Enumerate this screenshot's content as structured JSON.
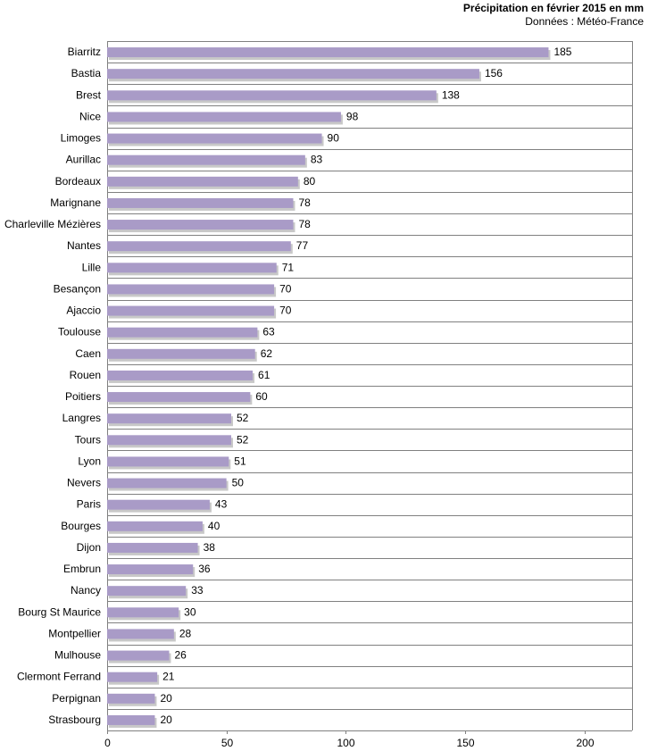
{
  "header": {
    "title": "Précipitation en février 2015 en mm",
    "source": "Données : Météo-France"
  },
  "chart_data": {
    "type": "bar",
    "orientation": "horizontal",
    "title": "Précipitation en février 2015 en mm",
    "subtitle": "Données : Météo-France",
    "categories": [
      "Biarritz",
      "Bastia",
      "Brest",
      "Nice",
      "Limoges",
      "Aurillac",
      "Bordeaux",
      "Marignane",
      "Charleville Mézières",
      "Nantes",
      "Lille",
      "Besançon",
      "Ajaccio",
      "Toulouse",
      "Caen",
      "Rouen",
      "Poitiers",
      "Langres",
      "Tours",
      "Lyon",
      "Nevers",
      "Paris",
      "Bourges",
      "Dijon",
      "Embrun",
      "Nancy",
      "Bourg St Maurice",
      "Montpellier",
      "Mulhouse",
      "Clermont Ferrand",
      "Perpignan",
      "Strasbourg"
    ],
    "values": [
      185,
      156,
      138,
      98,
      90,
      83,
      80,
      78,
      78,
      77,
      71,
      70,
      70,
      63,
      62,
      61,
      60,
      52,
      52,
      51,
      50,
      43,
      40,
      38,
      36,
      33,
      30,
      28,
      26,
      21,
      20,
      20
    ],
    "xlim": [
      0,
      220
    ],
    "xticks": [
      0,
      50,
      100,
      150,
      200
    ],
    "grid": true,
    "data_labels": true,
    "colors": {
      "bar": "#a99bc7",
      "shadow": "#c8c8c8",
      "grid": "#808080",
      "axis": "#808080"
    }
  }
}
